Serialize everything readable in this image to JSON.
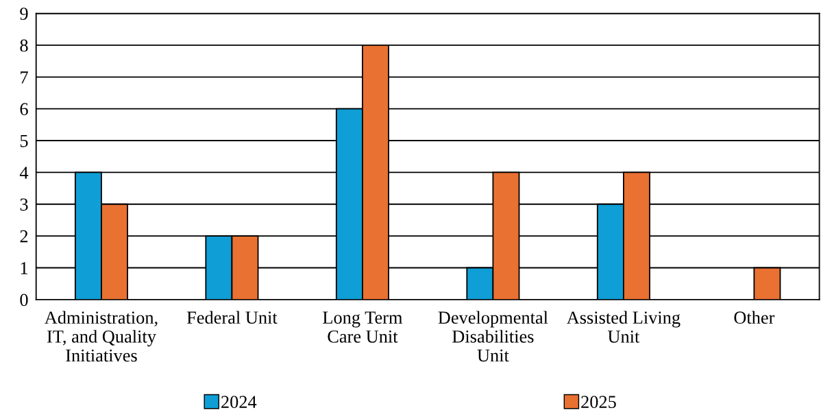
{
  "chart_data": {
    "type": "bar",
    "categories": [
      "Administration,\nIT, and Quality\nInitiatives",
      "Federal Unit",
      "Long Term\nCare Unit",
      "Developmental\nDisabilities\nUnit",
      "Assisted Living\nUnit",
      "Other"
    ],
    "series": [
      {
        "name": "2024",
        "color": "#0f9ed5",
        "values": [
          4,
          2,
          6,
          1,
          3,
          null
        ]
      },
      {
        "name": "2025",
        "color": "#e97132",
        "values": [
          3,
          2,
          8,
          4,
          4,
          1
        ]
      }
    ],
    "ylim": [
      0,
      9
    ],
    "yticks": [
      0,
      1,
      2,
      3,
      4,
      5,
      6,
      7,
      8,
      9
    ],
    "grid": "y",
    "legend": "bottom"
  }
}
